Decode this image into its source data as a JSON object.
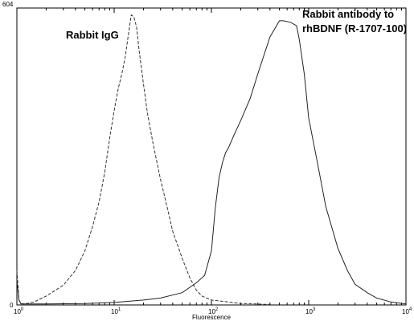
{
  "chart_data": {
    "type": "line",
    "header": "",
    "xlabel": "Fluorescence",
    "ylabel": "",
    "x_scale": "log",
    "xlim": [
      1,
      10000
    ],
    "ylim": [
      0,
      604
    ],
    "y_top_label": "604",
    "y_bottom_label": "0",
    "x_ticks": [
      {
        "base": "10",
        "exp": "0",
        "value": 1
      },
      {
        "base": "10",
        "exp": "1",
        "value": 10
      },
      {
        "base": "10",
        "exp": "2",
        "value": 100
      },
      {
        "base": "10",
        "exp": "3",
        "value": 1000
      },
      {
        "base": "10",
        "exp": "4",
        "value": 10000
      }
    ],
    "annotations": {
      "igg": "Rabbit IgG",
      "antibody_line1": "Rabbit antibody to",
      "antibody_line2": "rhBDNF (R-1707-100)"
    },
    "series": [
      {
        "style": "dashed",
        "color": "#333333",
        "x": [
          1,
          1.05,
          1.1,
          1.2,
          1.5,
          2,
          3,
          4,
          5,
          6,
          7,
          8,
          9,
          10,
          11,
          12,
          13,
          14,
          15,
          16,
          17,
          18,
          20,
          22,
          25,
          30,
          35,
          40,
          50,
          60,
          70,
          80,
          100,
          150,
          200,
          300,
          400
        ],
        "y": [
          70,
          10,
          3,
          2,
          6,
          18,
          40,
          70,
          110,
          160,
          210,
          270,
          340,
          395,
          440,
          470,
          505,
          550,
          590,
          585,
          565,
          520,
          450,
          390,
          330,
          255,
          200,
          150,
          95,
          55,
          30,
          18,
          10,
          6,
          3,
          2,
          1
        ]
      },
      {
        "style": "solid",
        "color": "#222222",
        "x": [
          1,
          1.05,
          1.1,
          2,
          5,
          10,
          20,
          30,
          50,
          70,
          85,
          100,
          110,
          120,
          130,
          140,
          150,
          170,
          200,
          250,
          300,
          400,
          500,
          550,
          650,
          750,
          800,
          900,
          1000,
          1200,
          1500,
          2000,
          2500,
          3000,
          4000,
          5000,
          7000,
          10000
        ],
        "y": [
          50,
          10,
          2,
          2,
          3,
          5,
          10,
          14,
          25,
          45,
          60,
          110,
          200,
          260,
          290,
          310,
          320,
          345,
          375,
          420,
          470,
          545,
          578,
          578,
          575,
          568,
          540,
          470,
          380,
          300,
          200,
          115,
          70,
          42,
          25,
          14,
          6,
          2
        ]
      }
    ]
  }
}
